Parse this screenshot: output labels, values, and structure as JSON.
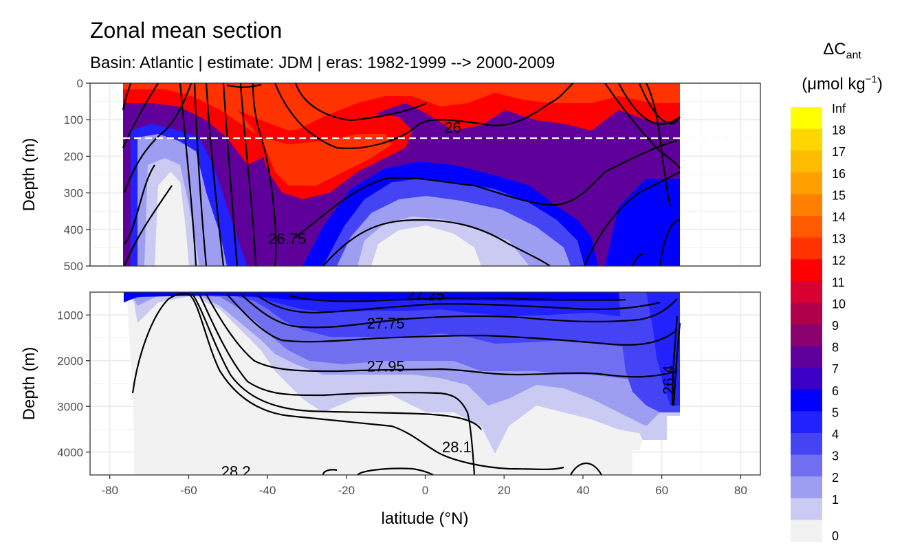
{
  "chart_data": {
    "type": "heatmap",
    "title": "Zonal mean section",
    "subtitle": "Basin: Atlantic | estimate: JDM  | eras: 1982-1999 --> 2000-2009",
    "xlabel": "latitude (°N)",
    "ylabel_top": "Depth (m)",
    "ylabel_bottom": "Depth (m)",
    "x_ticks": [
      "-80",
      "-60",
      "-40",
      "-20",
      "0",
      "20",
      "40",
      "60",
      "80"
    ],
    "x_range": [
      -85,
      85
    ],
    "panels": [
      {
        "name": "upper",
        "ylim": [
          0,
          500
        ],
        "y_ticks": [
          "0",
          "100",
          "200",
          "300",
          "400",
          "500"
        ],
        "reference_line_depth": 150,
        "contour_labels": [
          {
            "text": "26",
            "lat": 7,
            "depth": 120
          },
          {
            "text": "26.75",
            "lat": -35,
            "depth": 425
          }
        ]
      },
      {
        "name": "lower",
        "ylim": [
          500,
          4500
        ],
        "y_ticks": [
          "1000",
          "2000",
          "3000",
          "4000"
        ],
        "contour_labels": [
          {
            "text": "27.25",
            "lat": 0,
            "depth": 560
          },
          {
            "text": "27.75",
            "lat": -10,
            "depth": 1180
          },
          {
            "text": "27.95",
            "lat": -10,
            "depth": 2120
          },
          {
            "text": "28.1",
            "lat": 8,
            "depth": 3880
          },
          {
            "text": "28.2",
            "lat": -48,
            "depth": 4420
          },
          {
            "text": "26.4",
            "lat": 63,
            "depth": 2300
          }
        ]
      }
    ],
    "legend": {
      "title_main": "ΔC",
      "title_sub": "ant",
      "unit_pre": "(μmol kg",
      "unit_sup": "−1",
      "unit_post": ")",
      "labels": [
        "Inf",
        "18",
        "17",
        "16",
        "15",
        "14",
        "13",
        "12",
        "11",
        "10",
        "9",
        "8",
        "7",
        "6",
        "5",
        "4",
        "3",
        "2",
        "1",
        "0"
      ],
      "colors": [
        "#ffff00",
        "#ffd700",
        "#ffbb00",
        "#ffa000",
        "#ff8000",
        "#ff5a00",
        "#ff3300",
        "#ff0000",
        "#d80030",
        "#b0004a",
        "#8a006e",
        "#60009a",
        "#3a00c8",
        "#0000ff",
        "#2222ff",
        "#4444f5",
        "#6f6ff0",
        "#9d9df2",
        "#cacaf2",
        "#f2f2f2"
      ]
    }
  }
}
